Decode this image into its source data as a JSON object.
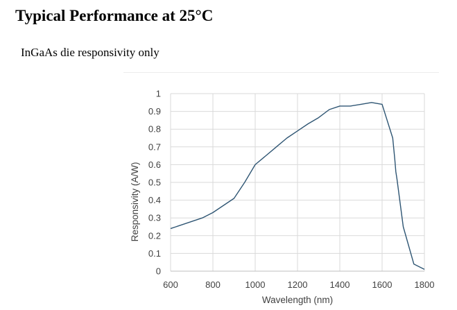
{
  "page": {
    "title": "Typical Performance at 25°C",
    "subtitle": "InGaAs die responsivity only"
  },
  "colors": {
    "line": "#2e5573",
    "grid": "#d9d9d9",
    "axis": "#bfbfbf",
    "tick_text": "#404040"
  },
  "chart_data": {
    "type": "line",
    "xlabel": "Wavelength (nm)",
    "ylabel": "Responsivity (A/W)",
    "xlim": [
      600,
      1800
    ],
    "ylim": [
      0,
      1
    ],
    "x_ticks": [
      600,
      800,
      1000,
      1200,
      1400,
      1600,
      1800
    ],
    "y_ticks": [
      0,
      0.1,
      0.2,
      0.3,
      0.4,
      0.5,
      0.6,
      0.7,
      0.8,
      0.9,
      1
    ],
    "y_tick_labels": [
      "0",
      "0.1",
      "0.2",
      "0.3",
      "0.4",
      "0.5",
      "0.6",
      "0.7",
      "0.8",
      "0.9",
      "1"
    ],
    "x_tick_labels": [
      "600",
      "800",
      "1000",
      "1200",
      "1400",
      "1600",
      "1800"
    ],
    "grid": "horizontal",
    "series": [
      {
        "x": [
          600,
          750,
          800,
          900,
          950,
          1000,
          1050,
          1100,
          1150,
          1200,
          1250,
          1300,
          1350,
          1400,
          1450,
          1500,
          1550,
          1600,
          1650,
          1660,
          1665,
          1670,
          1700,
          1750,
          1800
        ],
        "y": [
          0.24,
          0.3,
          0.33,
          0.41,
          0.5,
          0.6,
          0.65,
          0.7,
          0.75,
          0.79,
          0.83,
          0.865,
          0.91,
          0.93,
          0.93,
          0.94,
          0.95,
          0.94,
          0.75,
          0.63,
          0.56,
          0.52,
          0.25,
          0.04,
          0.01
        ]
      }
    ]
  }
}
